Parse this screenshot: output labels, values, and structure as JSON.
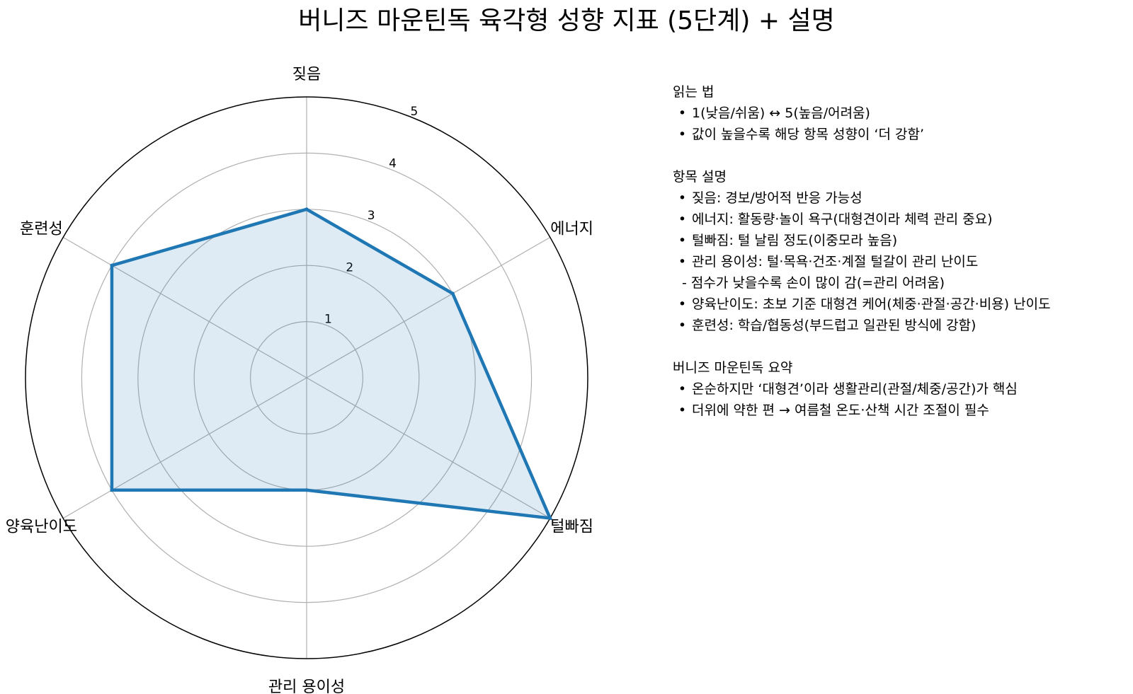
{
  "title": "버니즈 마운틴독 육각형 성향 지표 (5단계) + 설명",
  "chart_data": {
    "type": "radar",
    "title": "버니즈 마운틴독 육각형 성향 지표 (5단계) + 설명",
    "categories": [
      "짖음",
      "에너지",
      "털빠짐",
      "관리 용이성",
      "양육난이도",
      "훈련성"
    ],
    "values": [
      3,
      3,
      5,
      2,
      4,
      4
    ],
    "rlim": [
      0,
      5
    ],
    "radial_ticks": [
      "1",
      "2",
      "3",
      "4",
      "5"
    ],
    "grid": true,
    "colors": {
      "line": "#1f77b4",
      "fill": "#1f77b4",
      "grid": "#b0b0b0",
      "frame": "#000000"
    }
  },
  "notes": [
    {
      "heading": "읽는 법",
      "items": [
        {
          "kind": "bullet",
          "text": "1(낮음/쉬움) ↔ 5(높음/어려움)"
        },
        {
          "kind": "bullet",
          "text": "값이 높을수록 해당 항목 성향이 ‘더 강함’"
        }
      ]
    },
    {
      "heading": "항목 설명",
      "items": [
        {
          "kind": "bullet",
          "text": "짖음: 경보/방어적 반응 가능성"
        },
        {
          "kind": "bullet",
          "text": "에너지: 활동량·놀이 욕구(대형견이라 체력 관리 중요)"
        },
        {
          "kind": "bullet",
          "text": "털빠짐: 털 날림 정도(이중모라 높음)"
        },
        {
          "kind": "bullet",
          "text": "관리 용이성: 털·목욕·건조·계절 털갈이 관리 난이도"
        },
        {
          "kind": "sub",
          "text": "점수가 낮을수록 손이 많이 감(=관리 어려움)"
        },
        {
          "kind": "bullet",
          "text": "양육난이도: 초보 기준 대형견 케어(체중·관절·공간·비용) 난이도"
        },
        {
          "kind": "bullet",
          "text": "훈련성: 학습/협동성(부드럽고 일관된 방식에 강함)"
        }
      ]
    },
    {
      "heading": "버니즈 마운틴독 요약",
      "items": [
        {
          "kind": "bullet",
          "text": "온순하지만 ‘대형견’이라 생활관리(관절/체중/공간)가 핵심"
        },
        {
          "kind": "bullet",
          "text": "더위에 약한 편 → 여름철 온도·산책 시간 조절이 필수"
        }
      ]
    }
  ]
}
